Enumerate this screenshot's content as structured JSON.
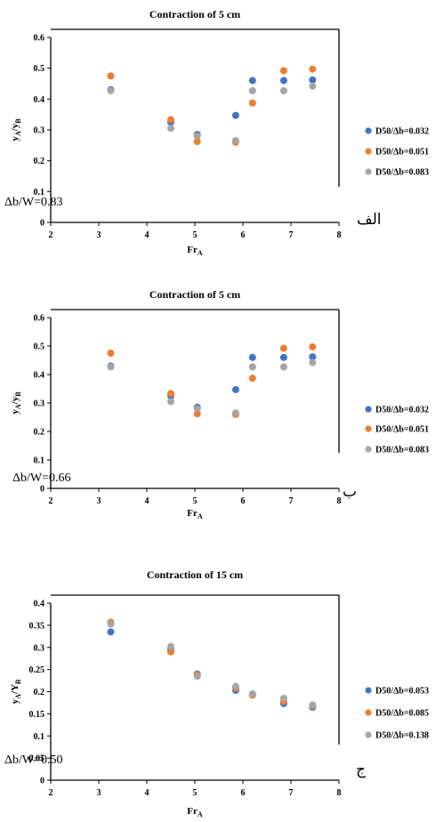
{
  "panels": [
    {
      "annotation": "Δb/W=0.83",
      "arabic_label": "الف"
    },
    {
      "annotation": "Δb/W=0.66",
      "arabic_label": "ب"
    },
    {
      "annotation": "Δb/W=0.50",
      "arabic_label": "ج"
    }
  ],
  "chart_data": [
    {
      "type": "scatter",
      "title": "Contraction of 5 cm",
      "xlabel": "FrA",
      "ylabel": "yA/yB",
      "xlim": [
        2,
        8
      ],
      "ylim": [
        0,
        0.6
      ],
      "xticks": [
        "2",
        "3",
        "4",
        "5",
        "6",
        "7",
        "8"
      ],
      "yticks": [
        "0",
        "0.1",
        "0.2",
        "0.3",
        "0.4",
        "0.5",
        "0.6"
      ],
      "legend_position": "right",
      "series": [
        {
          "name": "D50/Δb=0.032",
          "color": "#4472c4",
          "x": [
            3.25,
            4.5,
            5.05,
            5.85,
            6.2,
            6.85,
            7.45
          ],
          "y": [
            0.43,
            0.325,
            0.285,
            0.347,
            0.46,
            0.46,
            0.462
          ]
        },
        {
          "name": "D50/Δb=0.051",
          "color": "#ed7d31",
          "x": [
            3.25,
            4.5,
            5.05,
            5.85,
            6.2,
            6.85,
            7.45
          ],
          "y": [
            0.475,
            0.333,
            0.262,
            0.26,
            0.387,
            0.492,
            0.497
          ]
        },
        {
          "name": "D50/Δb=0.083",
          "color": "#a5a5a5",
          "x": [
            3.25,
            4.5,
            5.05,
            5.85,
            6.2,
            6.85,
            7.45
          ],
          "y": [
            0.427,
            0.305,
            0.28,
            0.265,
            0.427,
            0.427,
            0.442
          ]
        }
      ]
    },
    {
      "type": "scatter",
      "title": "Contraction of 5 cm",
      "xlabel": "FrA",
      "ylabel": "yA/yB",
      "xlim": [
        2,
        8
      ],
      "ylim": [
        0,
        0.6
      ],
      "xticks": [
        "2",
        "3",
        "4",
        "5",
        "6",
        "7",
        "8"
      ],
      "yticks": [
        "0",
        "0.1",
        "0.2",
        "0.3",
        "0.4",
        "0.5",
        "0.6"
      ],
      "legend_position": "right",
      "series": [
        {
          "name": "D50/Δb=0.032",
          "color": "#4472c4",
          "x": [
            3.25,
            4.5,
            5.05,
            5.85,
            6.2,
            6.85,
            7.45
          ],
          "y": [
            0.43,
            0.325,
            0.285,
            0.347,
            0.46,
            0.46,
            0.462
          ]
        },
        {
          "name": "D50/Δb=0.051",
          "color": "#ed7d31",
          "x": [
            3.25,
            4.5,
            5.05,
            5.85,
            6.2,
            6.85,
            7.45
          ],
          "y": [
            0.475,
            0.333,
            0.262,
            0.26,
            0.387,
            0.492,
            0.497
          ]
        },
        {
          "name": "D50/Δb=0.083",
          "color": "#a5a5a5",
          "x": [
            3.25,
            4.5,
            5.05,
            5.85,
            6.2,
            6.85,
            7.45
          ],
          "y": [
            0.427,
            0.305,
            0.28,
            0.265,
            0.427,
            0.427,
            0.442
          ]
        }
      ]
    },
    {
      "type": "scatter",
      "title": "Contraction of 15 cm",
      "xlabel": "FrA",
      "ylabel": "yA/YB",
      "xlim": [
        2,
        8
      ],
      "ylim": [
        0,
        0.4
      ],
      "xticks": [
        "2",
        "3",
        "4",
        "5",
        "6",
        "7",
        "8"
      ],
      "yticks": [
        "0",
        "0.05",
        "0.1",
        "0.15",
        "0.2",
        "0.25",
        "0.3",
        "0.35",
        "0.4"
      ],
      "legend_position": "right",
      "series": [
        {
          "name": "D50/Δb=0.053",
          "color": "#4472c4",
          "x": [
            3.25,
            4.5,
            5.05,
            5.85,
            6.2,
            6.85,
            7.45
          ],
          "y": [
            0.335,
            0.295,
            0.24,
            0.203,
            0.193,
            0.173,
            0.165
          ]
        },
        {
          "name": "D50/Δb=0.085",
          "color": "#ed7d31",
          "x": [
            3.25,
            4.5,
            5.05,
            5.85,
            6.2,
            6.85,
            7.45
          ],
          "y": [
            0.357,
            0.29,
            0.238,
            0.208,
            0.192,
            0.178,
            0.168
          ]
        },
        {
          "name": "D50/Δb=0.138",
          "color": "#a5a5a5",
          "x": [
            3.25,
            4.5,
            5.05,
            5.85,
            6.2,
            6.85,
            7.45
          ],
          "y": [
            0.353,
            0.302,
            0.235,
            0.212,
            0.195,
            0.185,
            0.17
          ]
        }
      ]
    }
  ]
}
